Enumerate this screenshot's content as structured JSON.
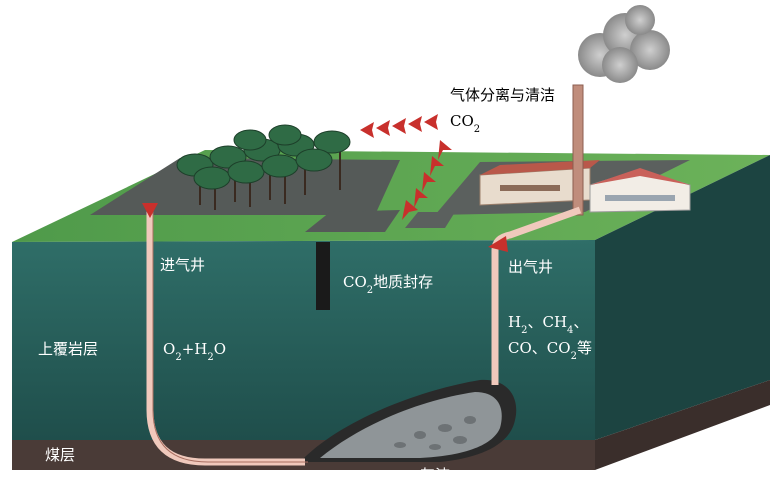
{
  "labels": [
    [
      "气体分离与清洁"
    ],
    [
      "CO",
      "2"
    ],
    [
      "进气井"
    ],
    [
      "CO",
      "2",
      "地质封存"
    ],
    [
      "出气井"
    ],
    [
      "上覆岩层"
    ],
    [
      "O",
      "2",
      "+H",
      "2",
      "O"
    ],
    [
      "H",
      "2",
      "、CH",
      "4",
      "、"
    ],
    [
      "CO、CO",
      "2",
      "等"
    ],
    [
      "煤层"
    ],
    [
      "灰渣"
    ]
  ]
}
